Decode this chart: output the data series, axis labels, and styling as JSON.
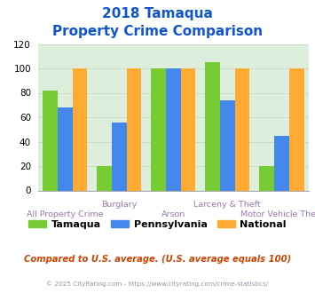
{
  "title_line1": "2018 Tamaqua",
  "title_line2": "Property Crime Comparison",
  "tamaqua": [
    82,
    20,
    100,
    105,
    20
  ],
  "pennsylvania": [
    68,
    56,
    100,
    74,
    45
  ],
  "national": [
    100,
    100,
    100,
    100,
    100
  ],
  "bar_colors": {
    "tamaqua": "#77cc33",
    "pennsylvania": "#4488ee",
    "national": "#ffaa33"
  },
  "ylim": [
    0,
    120
  ],
  "yticks": [
    0,
    20,
    40,
    60,
    80,
    100,
    120
  ],
  "title_color": "#1155cc",
  "xlabel_color": "#9977aa",
  "grid_color": "#c8ddc8",
  "background_color": "#ddeedd",
  "legend_labels": [
    "Tamaqua",
    "Pennsylvania",
    "National"
  ],
  "footer_text": "Compared to U.S. average. (U.S. average equals 100)",
  "copyright_text": "© 2025 CityRating.com - https://www.cityrating.com/crime-statistics/",
  "footer_color": "#cc4400",
  "copyright_color": "#8899aa"
}
